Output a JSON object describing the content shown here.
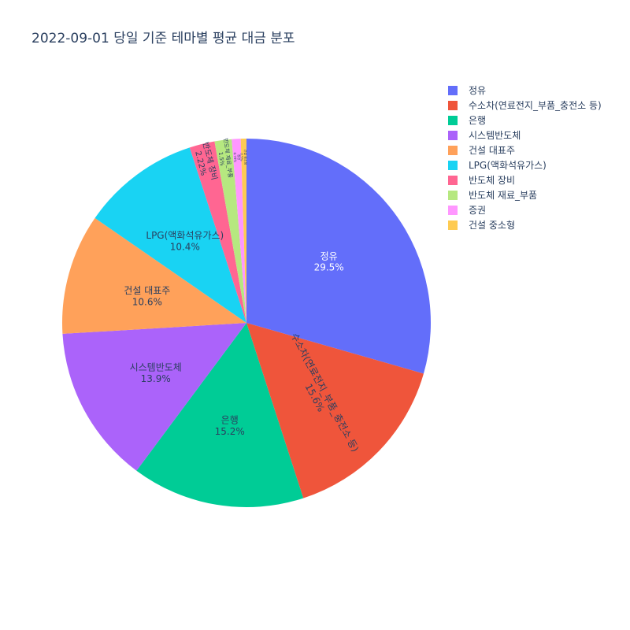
{
  "chart_data": {
    "type": "pie",
    "title": "2022-09-01 당일 기준 테마별 평균 대금 분포",
    "slices": [
      {
        "label": "정유",
        "percent": "29.5%",
        "value": 29.5,
        "color": "#636efa"
      },
      {
        "label": "수소차(연료전지_부품_충전소 등)",
        "percent": "15.6%",
        "value": 15.6,
        "color": "#ef553b"
      },
      {
        "label": "은행",
        "percent": "15.2%",
        "value": 15.2,
        "color": "#00cc96"
      },
      {
        "label": "시스템반도체",
        "percent": "13.9%",
        "value": 13.9,
        "color": "#ab63fa"
      },
      {
        "label": "건설 대표주",
        "percent": "10.6%",
        "value": 10.6,
        "color": "#ffa15a"
      },
      {
        "label": "LPG(액화석유가스)",
        "percent": "10.4%",
        "value": 10.4,
        "color": "#19d3f3"
      },
      {
        "label": "반도체 장비",
        "percent": "2.22%",
        "value": 2.22,
        "color": "#ff6692"
      },
      {
        "label": "반도체 재료_부품",
        "percent": "1.5%",
        "value": 1.5,
        "color": "#b6e880"
      },
      {
        "label": "증권",
        "percent": "0.78%",
        "value": 0.78,
        "color": "#ff97ff"
      },
      {
        "label": "건설 중소형",
        "percent": "0.5%",
        "value": 0.5,
        "color": "#fecb52"
      }
    ],
    "legend_position": "top-right",
    "direction": "clockwise",
    "start": "top"
  }
}
